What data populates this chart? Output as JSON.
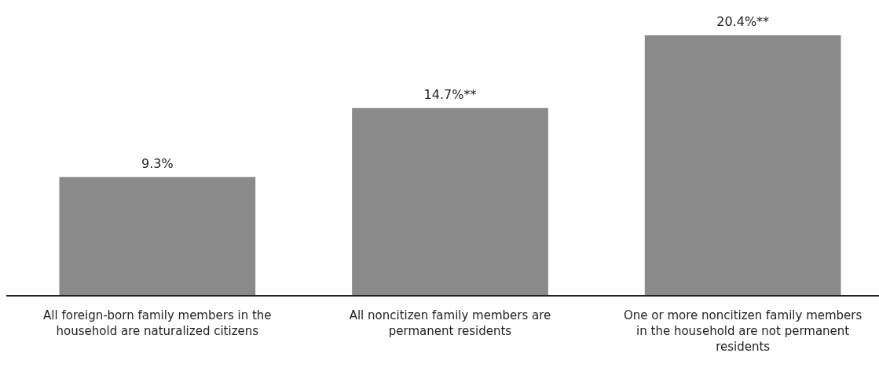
{
  "chart_data": {
    "type": "bar",
    "categories": [
      "All foreign-born family members in the household are naturalized citizens",
      "All noncitizen family members are permanent residents",
      "One or more noncitizen family members in the household are not permanent residents"
    ],
    "values": [
      9.3,
      14.7,
      20.4
    ],
    "value_labels": [
      "9.3%",
      "14.7%**",
      "20.4%**"
    ],
    "color": "#8a8a8a"
  }
}
